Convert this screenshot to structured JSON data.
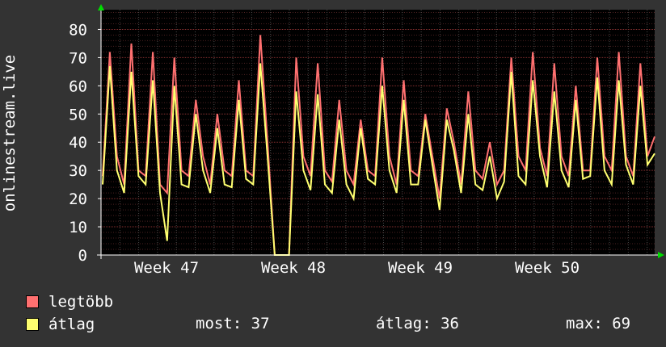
{
  "chart_data": {
    "type": "line",
    "ylabel": "onlinestream.live",
    "ylim": [
      0,
      87
    ],
    "yticks": [
      0,
      10,
      20,
      30,
      40,
      50,
      60,
      70,
      80
    ],
    "xlabels": [
      "Week 47",
      "Week 48",
      "Week 49",
      "Week 50"
    ],
    "grid": true,
    "legend_placement": "bottom-left",
    "series": [
      {
        "name": "legtöbb",
        "color": "#ff7070",
        "values": [
          28,
          72,
          35,
          25,
          75,
          30,
          28,
          72,
          25,
          22,
          70,
          30,
          28,
          55,
          35,
          25,
          50,
          30,
          28,
          62,
          30,
          28,
          78,
          40,
          0,
          0,
          0,
          70,
          35,
          28,
          68,
          30,
          26,
          55,
          30,
          25,
          48,
          30,
          28,
          70,
          35,
          25,
          62,
          30,
          28,
          50,
          35,
          20,
          52,
          40,
          25,
          58,
          30,
          27,
          40,
          25,
          30,
          70,
          35,
          30,
          72,
          38,
          28,
          68,
          35,
          28,
          60,
          30,
          30,
          70,
          35,
          30,
          72,
          35,
          28,
          68,
          35,
          42
        ]
      },
      {
        "name": "átlag",
        "color": "#ffff70",
        "values": [
          25,
          67,
          30,
          22,
          65,
          28,
          25,
          62,
          22,
          5,
          60,
          25,
          24,
          50,
          30,
          22,
          45,
          25,
          24,
          55,
          27,
          25,
          68,
          35,
          0,
          0,
          0,
          58,
          30,
          23,
          57,
          25,
          22,
          48,
          25,
          20,
          45,
          27,
          25,
          60,
          30,
          22,
          55,
          25,
          25,
          48,
          32,
          16,
          48,
          37,
          22,
          50,
          25,
          23,
          35,
          20,
          26,
          65,
          28,
          25,
          62,
          35,
          24,
          58,
          30,
          24,
          55,
          27,
          28,
          63,
          30,
          25,
          62,
          32,
          25,
          60,
          32,
          36
        ]
      }
    ],
    "legend": {
      "max_label": "legtöbb",
      "avg_label": "átlag"
    },
    "stats": {
      "now_label": "most: 37",
      "avg_label": "átlag: 36",
      "max_label": "max: 69"
    }
  }
}
